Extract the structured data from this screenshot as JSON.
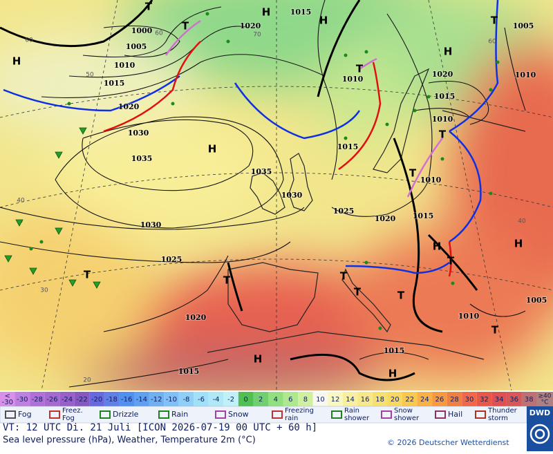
{
  "map": {
    "isobar_labels": [
      "1000",
      "1005",
      "1010",
      "1015",
      "1020",
      "1030",
      "1035",
      "1030",
      "1025",
      "1020",
      "1015",
      "1020",
      "1015",
      "1010",
      "1015",
      "1035",
      "1030",
      "1025",
      "1020",
      "1015",
      "1010",
      "1010",
      "1015",
      "1020",
      "1005",
      "1010",
      "1005",
      "1010",
      "1015"
    ],
    "pressure_centers": [
      "H",
      "T",
      "H",
      "H",
      "T",
      "H",
      "T",
      "H",
      "T",
      "T",
      "T",
      "H",
      "H",
      "T",
      "T",
      "T",
      "T",
      "T",
      "T",
      "T",
      "H",
      "H"
    ],
    "temperature_labels": [
      "60",
      "50",
      "40",
      "30",
      "20",
      "40",
      "60",
      "70",
      "60"
    ]
  },
  "scale": {
    "first": [
      "<",
      "-30"
    ],
    "values": [
      -30,
      -28,
      -26,
      -24,
      -22,
      -20,
      -18,
      -16,
      -14,
      -12,
      -10,
      -8,
      -6,
      -4,
      -2,
      0,
      2,
      4,
      6,
      8,
      10,
      12,
      14,
      16,
      18,
      20,
      22,
      24,
      26,
      28,
      30,
      32,
      34,
      36,
      38
    ],
    "last": [
      "≥40",
      "°C"
    ],
    "colors": [
      "#d890e8",
      "#c080e0",
      "#b070d8",
      "#a868d0",
      "#9860c8",
      "#8858c0",
      "#6868e0",
      "#6080e8",
      "#5090f0",
      "#60a0f0",
      "#70b0f0",
      "#80c0f8",
      "#90d0f8",
      "#a0e0f8",
      "#b0e8f8",
      "#c0f0f8",
      "#50c050",
      "#70d070",
      "#90e080",
      "#b0e890",
      "#d0f0a0",
      "#f8f8f0",
      "#f8f8c0",
      "#f8f0a0",
      "#f8e888",
      "#f8e070",
      "#f8d860",
      "#f8c850",
      "#f8b048",
      "#f89840",
      "#f08040",
      "#f06848",
      "#e85848",
      "#e05050",
      "#d85858",
      "#c07070",
      "#b08080"
    ]
  },
  "legend": [
    [
      "Fog"
    ],
    [
      "Freez.",
      "Fog"
    ],
    [
      "Drizzle"
    ],
    [
      "Rain"
    ],
    [
      "Snow"
    ],
    [
      "Freezing",
      "rain"
    ],
    [
      "Rain",
      "shower"
    ],
    [
      "Snow",
      "shower"
    ],
    [
      "Hail"
    ],
    [
      "Thunder",
      "storm"
    ]
  ],
  "footer": {
    "valid_time": "VT: 12 UTC Di.  21 Juli [ICON 2026-07-19  00 UTC + 60 h]",
    "description": "Sea level pressure (hPa), Weather, Temperature 2m (°C)",
    "copyright": "© 2026 Deutscher Wetterdienst",
    "logo": "DWD"
  }
}
